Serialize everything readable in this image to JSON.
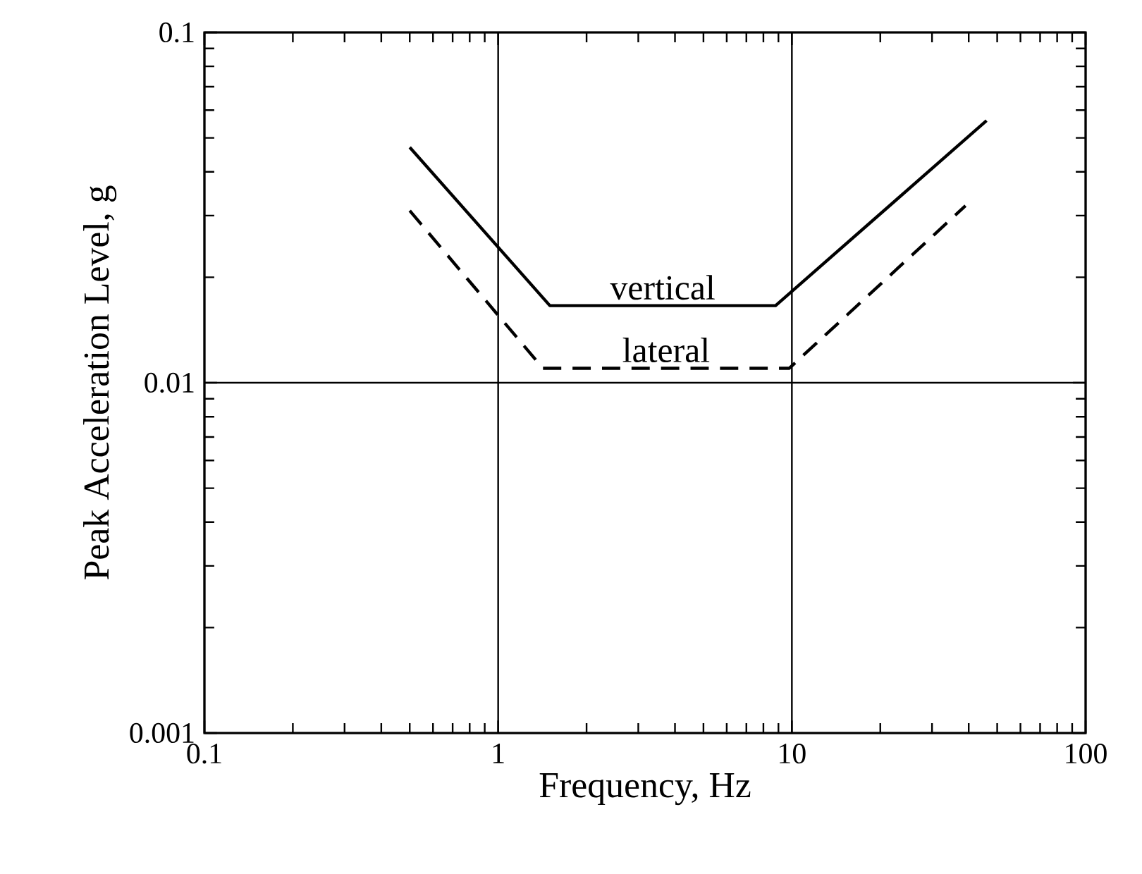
{
  "chart_data": {
    "type": "line",
    "xlabel": "Frequency, Hz",
    "ylabel": "Peak Acceleration Level, g",
    "log": "xy",
    "xlim": [
      0.1,
      100
    ],
    "ylim": [
      0.001,
      0.1
    ],
    "xticks": [
      {
        "value": 0.1,
        "label": "0.1"
      },
      {
        "value": 1,
        "label": "1"
      },
      {
        "value": 10,
        "label": "10"
      },
      {
        "value": 100,
        "label": "100"
      }
    ],
    "yticks": [
      {
        "value": 0.001,
        "label": "0.001"
      },
      {
        "value": 0.01,
        "label": "0.01"
      },
      {
        "value": 0.1,
        "label": "0.1"
      }
    ],
    "grid": true,
    "legend": false,
    "series": [
      {
        "name": "vertical",
        "color": "#000000",
        "line_style": "solid",
        "x": [
          0.5,
          1.5,
          8.8,
          46
        ],
        "values": [
          0.047,
          0.0166,
          0.0166,
          0.056
        ]
      },
      {
        "name": "lateral",
        "color": "#000000",
        "line_style": "dashed",
        "x": [
          0.5,
          1.42,
          9.8,
          39
        ],
        "values": [
          0.031,
          0.011,
          0.011,
          0.032
        ]
      }
    ]
  }
}
